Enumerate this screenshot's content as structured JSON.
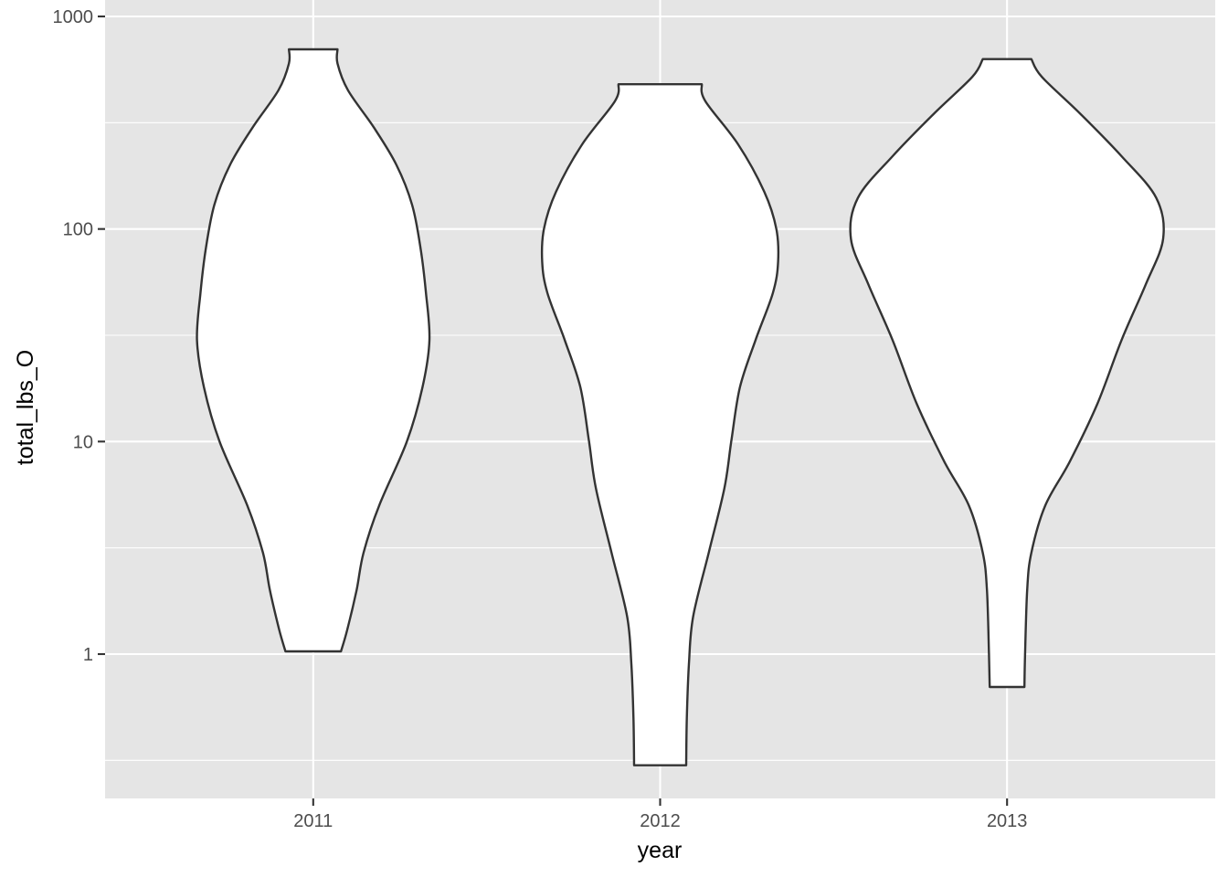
{
  "chart_data": {
    "type": "violin",
    "title": "",
    "xlabel": "year",
    "ylabel": "total_lbs_O",
    "y_scale": "log10",
    "ylim": [
      0.22,
      1000
    ],
    "y_ticks": [
      {
        "value": 1000,
        "label": "1000"
      },
      {
        "value": 100,
        "label": "100"
      },
      {
        "value": 10,
        "label": "10"
      },
      {
        "value": 1,
        "label": "1"
      }
    ],
    "y_minor_ticks": [
      316.2,
      31.62,
      3.162,
      0.3162
    ],
    "categories": [
      "2011",
      "2012",
      "2013"
    ],
    "grid": true,
    "legend": "none",
    "colors": {
      "panel_background": "#e5e5e5",
      "grid": "#ffffff",
      "violin_fill": "#ffffff",
      "violin_outline": "#333333"
    },
    "violins": [
      {
        "category": "2011",
        "min": 1.03,
        "max": 700,
        "profile": [
          {
            "y": 1.03,
            "half_width": 0.08
          },
          {
            "y": 1.3,
            "half_width": 0.098
          },
          {
            "y": 2,
            "half_width": 0.125
          },
          {
            "y": 3,
            "half_width": 0.145
          },
          {
            "y": 5,
            "half_width": 0.19
          },
          {
            "y": 10,
            "half_width": 0.27
          },
          {
            "y": 18,
            "half_width": 0.315
          },
          {
            "y": 30,
            "half_width": 0.335
          },
          {
            "y": 50,
            "half_width": 0.325
          },
          {
            "y": 80,
            "half_width": 0.31
          },
          {
            "y": 130,
            "half_width": 0.285
          },
          {
            "y": 200,
            "half_width": 0.24
          },
          {
            "y": 300,
            "half_width": 0.175
          },
          {
            "y": 450,
            "half_width": 0.1
          },
          {
            "y": 600,
            "half_width": 0.07
          },
          {
            "y": 700,
            "half_width": 0.07
          }
        ]
      },
      {
        "category": "2012",
        "min": 0.3,
        "max": 480,
        "profile": [
          {
            "y": 0.3,
            "half_width": 0.075
          },
          {
            "y": 0.5,
            "half_width": 0.077
          },
          {
            "y": 0.9,
            "half_width": 0.083
          },
          {
            "y": 1.5,
            "half_width": 0.095
          },
          {
            "y": 3,
            "half_width": 0.14
          },
          {
            "y": 6,
            "half_width": 0.185
          },
          {
            "y": 10,
            "half_width": 0.205
          },
          {
            "y": 18,
            "half_width": 0.23
          },
          {
            "y": 30,
            "half_width": 0.275
          },
          {
            "y": 50,
            "half_width": 0.325
          },
          {
            "y": 70,
            "half_width": 0.34
          },
          {
            "y": 100,
            "half_width": 0.335
          },
          {
            "y": 150,
            "half_width": 0.3
          },
          {
            "y": 250,
            "half_width": 0.225
          },
          {
            "y": 400,
            "half_width": 0.13
          },
          {
            "y": 480,
            "half_width": 0.12
          }
        ]
      },
      {
        "category": "2013",
        "min": 0.7,
        "max": 630,
        "profile": [
          {
            "y": 0.7,
            "half_width": 0.05
          },
          {
            "y": 1,
            "half_width": 0.052
          },
          {
            "y": 2,
            "half_width": 0.058
          },
          {
            "y": 3,
            "half_width": 0.07
          },
          {
            "y": 5,
            "half_width": 0.11
          },
          {
            "y": 8,
            "half_width": 0.18
          },
          {
            "y": 15,
            "half_width": 0.26
          },
          {
            "y": 30,
            "half_width": 0.33
          },
          {
            "y": 55,
            "half_width": 0.4
          },
          {
            "y": 90,
            "half_width": 0.45
          },
          {
            "y": 140,
            "half_width": 0.43
          },
          {
            "y": 220,
            "half_width": 0.33
          },
          {
            "y": 350,
            "half_width": 0.21
          },
          {
            "y": 520,
            "half_width": 0.1
          },
          {
            "y": 630,
            "half_width": 0.07
          }
        ]
      }
    ]
  }
}
